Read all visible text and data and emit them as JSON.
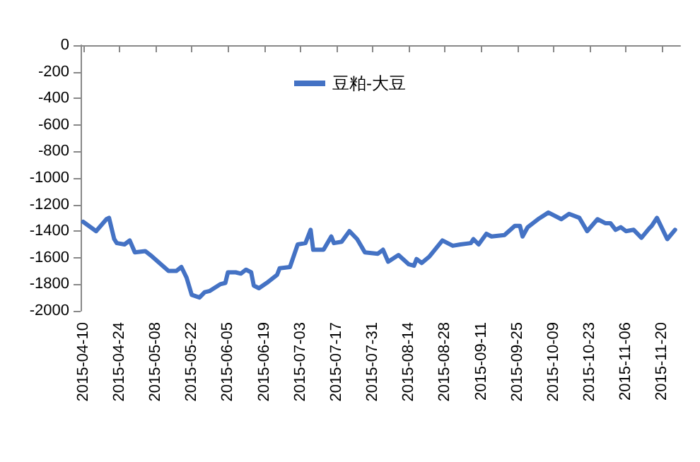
{
  "chart_data": {
    "type": "line",
    "legend": "top",
    "marker": "none",
    "line_style": "solid",
    "grid": false,
    "xlim": [
      "2015-04-09",
      "2015-11-27"
    ],
    "xticks": [
      "2015-04-10",
      "2015-04-24",
      "2015-05-08",
      "2015-05-22",
      "2015-06-05",
      "2015-06-19",
      "2015-07-03",
      "2015-07-17",
      "2015-07-31",
      "2015-08-14",
      "2015-08-28",
      "2015-09-11",
      "2015-09-25",
      "2015-10-09",
      "2015-10-23",
      "2015-11-06",
      "2015-11-20"
    ],
    "ylim": [
      -2000,
      0
    ],
    "yticks": [
      0,
      -200,
      -400,
      -600,
      -800,
      -1000,
      -1200,
      -1400,
      -1600,
      -1800,
      -2000
    ],
    "series": [
      {
        "name": "豆粕-大豆",
        "color": "#4472c4",
        "x": [
          "2015-04-10",
          "2015-04-15",
          "2015-04-19",
          "2015-04-20",
          "2015-04-22",
          "2015-04-23",
          "2015-04-26",
          "2015-04-28",
          "2015-04-30",
          "2015-05-04",
          "2015-05-06",
          "2015-05-13",
          "2015-05-16",
          "2015-05-18",
          "2015-05-20",
          "2015-05-22",
          "2015-05-25",
          "2015-05-27",
          "2015-05-29",
          "2015-06-02",
          "2015-06-04",
          "2015-06-05",
          "2015-06-08",
          "2015-06-10",
          "2015-06-12",
          "2015-06-14",
          "2015-06-15",
          "2015-06-17",
          "2015-06-20",
          "2015-06-24",
          "2015-06-25",
          "2015-06-29",
          "2015-07-02",
          "2015-07-05",
          "2015-07-07",
          "2015-07-08",
          "2015-07-12",
          "2015-07-15",
          "2015-07-16",
          "2015-07-19",
          "2015-07-22",
          "2015-07-25",
          "2015-07-28",
          "2015-08-02",
          "2015-08-04",
          "2015-08-06",
          "2015-08-10",
          "2015-08-14",
          "2015-08-16",
          "2015-08-17",
          "2015-08-19",
          "2015-08-22",
          "2015-08-27",
          "2015-08-31",
          "2015-09-03",
          "2015-09-07",
          "2015-09-08",
          "2015-09-10",
          "2015-09-13",
          "2015-09-15",
          "2015-09-20",
          "2015-09-24",
          "2015-09-26",
          "2015-09-27",
          "2015-09-29",
          "2015-10-03",
          "2015-10-07",
          "2015-10-12",
          "2015-10-15",
          "2015-10-19",
          "2015-10-22",
          "2015-10-26",
          "2015-10-29",
          "2015-10-31",
          "2015-11-02",
          "2015-11-04",
          "2015-11-06",
          "2015-11-09",
          "2015-11-12",
          "2015-11-15",
          "2015-11-16",
          "2015-11-18",
          "2015-11-22",
          "2015-11-25"
        ],
        "values": [
          -1330,
          -1400,
          -1310,
          -1300,
          -1460,
          -1490,
          -1500,
          -1470,
          -1560,
          -1550,
          -1580,
          -1700,
          -1700,
          -1670,
          -1750,
          -1880,
          -1900,
          -1860,
          -1850,
          -1800,
          -1790,
          -1710,
          -1710,
          -1720,
          -1690,
          -1710,
          -1810,
          -1830,
          -1790,
          -1730,
          -1680,
          -1670,
          -1500,
          -1490,
          -1390,
          -1540,
          -1540,
          -1440,
          -1490,
          -1480,
          -1400,
          -1460,
          -1560,
          -1570,
          -1540,
          -1630,
          -1580,
          -1650,
          -1660,
          -1610,
          -1640,
          -1590,
          -1470,
          -1510,
          -1500,
          -1490,
          -1460,
          -1500,
          -1420,
          -1440,
          -1430,
          -1360,
          -1360,
          -1440,
          -1370,
          -1310,
          -1260,
          -1310,
          -1270,
          -1300,
          -1400,
          -1310,
          -1340,
          -1340,
          -1390,
          -1370,
          -1400,
          -1390,
          -1450,
          -1380,
          -1360,
          -1300,
          -1460,
          -1390
        ]
      }
    ]
  }
}
